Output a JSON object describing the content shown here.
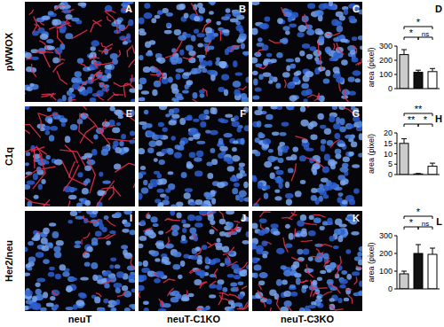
{
  "figure": {
    "rows": [
      "pWWOX",
      "C1q",
      "Her2/neu"
    ],
    "columns": [
      "neuT",
      "neuT-C1KO",
      "neuT-C3KO"
    ],
    "panels": [
      "A",
      "B",
      "C",
      "E",
      "F",
      "G",
      "I",
      "J",
      "K"
    ]
  },
  "chart_data": [
    {
      "type": "bar",
      "title": "D",
      "y_label": "area (pixel)",
      "categories": [
        null,
        null,
        null
      ],
      "values": [
        240,
        115,
        120
      ],
      "errors": [
        35,
        15,
        22
      ],
      "colors": [
        "#cccccc",
        "#111111",
        "#ffffff"
      ],
      "ylim": [
        0,
        300
      ],
      "yticks": [
        0,
        100,
        200,
        300
      ],
      "tick_labels": "y",
      "annotations": [
        {
          "label": "*",
          "between": [
            0,
            2
          ]
        },
        {
          "label": "*",
          "between": [
            0,
            1
          ]
        },
        {
          "label": "ns",
          "between": [
            1,
            2
          ]
        }
      ]
    },
    {
      "type": "bar",
      "title": "H",
      "y_label": "area (pixel)",
      "categories": [
        null,
        null,
        null
      ],
      "values": [
        15,
        0.3,
        4
      ],
      "errors": [
        2.2,
        0.2,
        1.5
      ],
      "colors": [
        "#cccccc",
        "#111111",
        "#ffffff"
      ],
      "ylim": [
        0,
        20
      ],
      "yticks": [
        0,
        5,
        10,
        15,
        20
      ],
      "tick_labels": "y",
      "annotations": [
        {
          "label": "**",
          "between": [
            0,
            2
          ]
        },
        {
          "label": "**",
          "between": [
            0,
            1
          ]
        },
        {
          "label": "*",
          "between": [
            1,
            2
          ]
        }
      ]
    },
    {
      "type": "bar",
      "title": "L",
      "y_label": "area (pixel)",
      "categories": [
        null,
        null,
        null
      ],
      "values": [
        85,
        200,
        195
      ],
      "errors": [
        15,
        50,
        35
      ],
      "colors": [
        "#cccccc",
        "#111111",
        "#ffffff"
      ],
      "ylim": [
        0,
        300
      ],
      "yticks": [
        0,
        100,
        200,
        300
      ],
      "tick_labels": "y",
      "annotations": [
        {
          "label": "*",
          "between": [
            0,
            2
          ]
        },
        {
          "label": "*",
          "between": [
            0,
            1
          ]
        },
        {
          "label": "ns",
          "between": [
            1,
            2
          ]
        }
      ]
    }
  ]
}
